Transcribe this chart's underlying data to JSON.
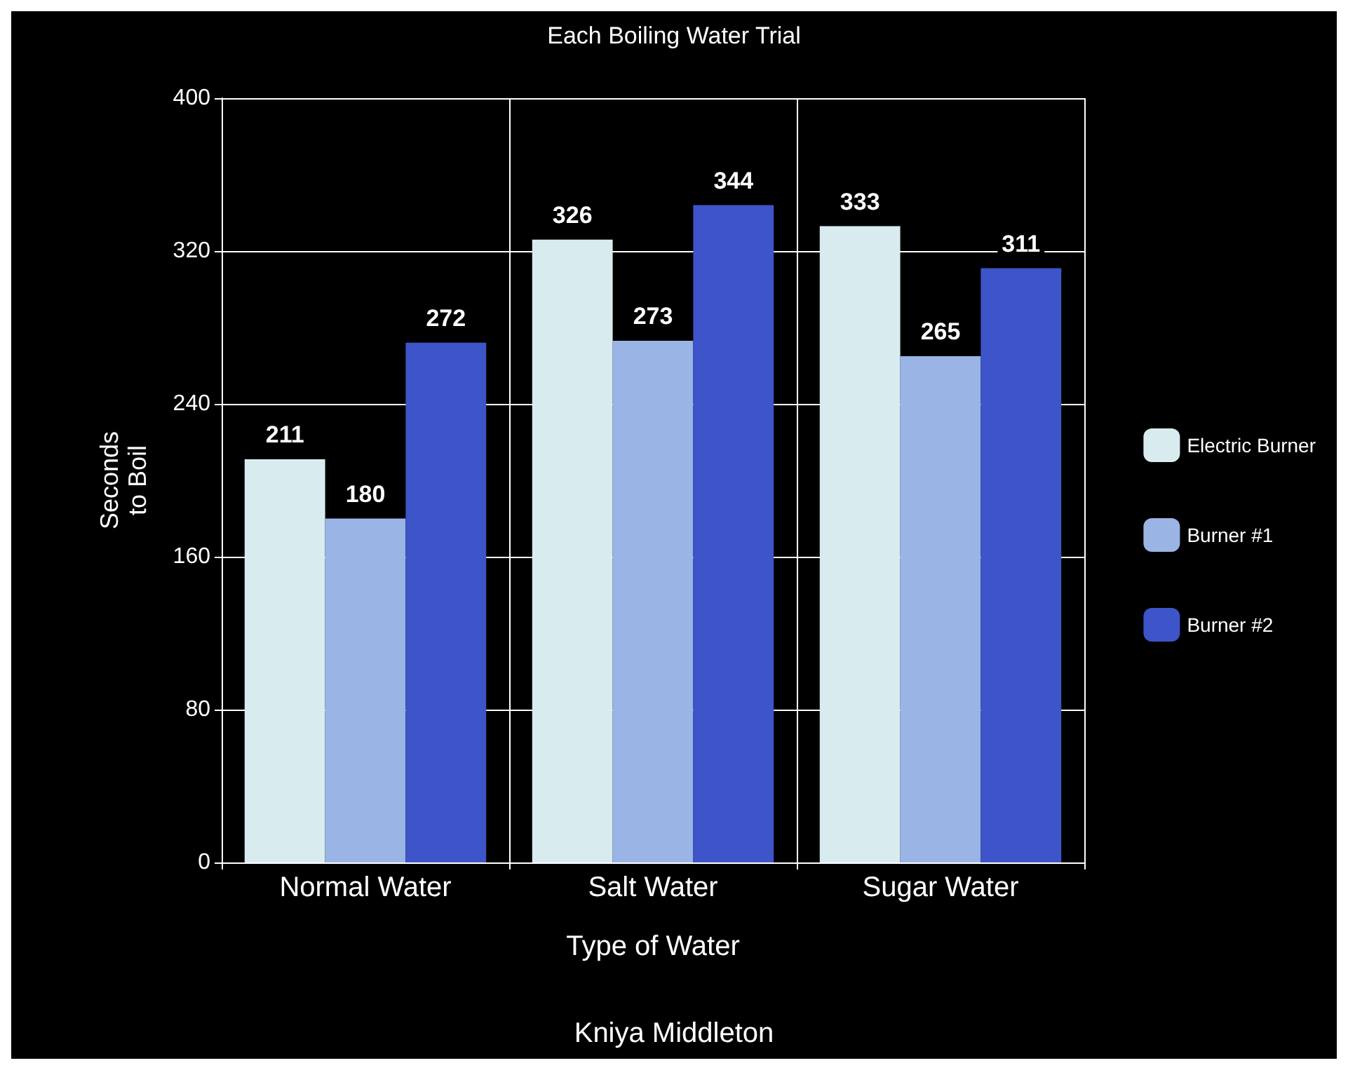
{
  "chart_data": {
    "type": "bar",
    "title": "Each Boiling Water Trial",
    "xlabel": "Type of Water",
    "ylabel": "Seconds\nto Boil",
    "annotations": [
      "Kniya Middleton"
    ],
    "categories": [
      "Normal Water",
      "Salt Water",
      "Sugar Water"
    ],
    "series": [
      {
        "name": "Electric Burner",
        "color": "#d8ecf0",
        "values": [
          211,
          326,
          333
        ]
      },
      {
        "name": "Burner #1",
        "color": "#9ab4e6",
        "values": [
          180,
          273,
          265
        ]
      },
      {
        "name": "Burner #2",
        "color": "#3d55c8",
        "values": [
          272,
          344,
          311
        ]
      }
    ],
    "ylim": [
      0,
      400
    ],
    "yticks": [
      0,
      80,
      160,
      240,
      320,
      400
    ],
    "grid": true,
    "legend": "right",
    "data_labels": true
  }
}
